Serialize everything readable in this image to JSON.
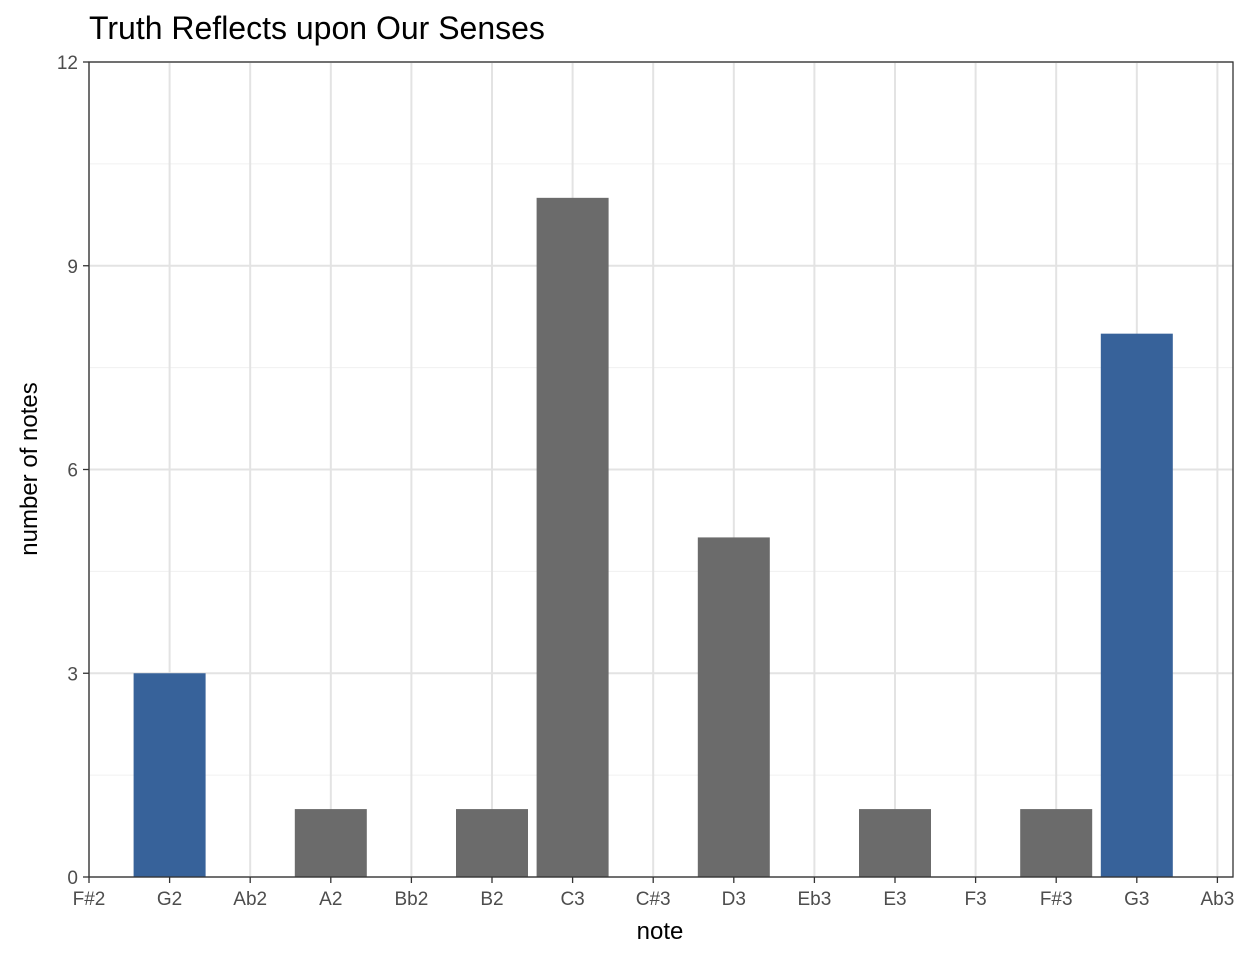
{
  "chart_data": {
    "type": "bar",
    "title": "Truth Reflects upon Our Senses",
    "xlabel": "note",
    "ylabel": "number of notes",
    "categories": [
      "F#2",
      "G2",
      "Ab2",
      "A2",
      "Bb2",
      "B2",
      "C3",
      "C#3",
      "D3",
      "Eb3",
      "E3",
      "F3",
      "F#3",
      "G3",
      "Ab3"
    ],
    "values": [
      0,
      3,
      0,
      1,
      0,
      1,
      10,
      0,
      5,
      0,
      1,
      0,
      1,
      8,
      0
    ],
    "highlighted_categories": [
      "G2",
      "G3"
    ],
    "ylim": [
      0,
      12
    ],
    "yticks": [
      0,
      3,
      6,
      9,
      12
    ],
    "grid": true,
    "legend": "none",
    "colors": {
      "bar": "#6b6b6b",
      "highlight": "#37629a",
      "grid_major": "#e3e3e3",
      "grid_minor": "#f0f0f0",
      "border": "#333333",
      "tick_text": "#4d4d4d"
    }
  }
}
